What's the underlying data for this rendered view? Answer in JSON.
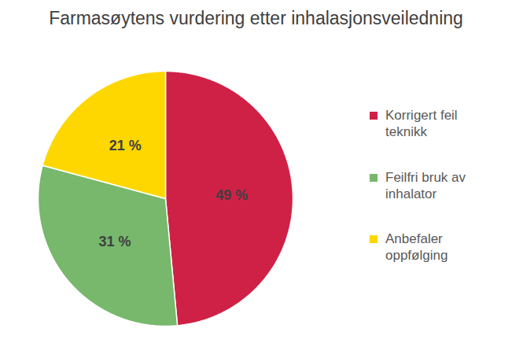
{
  "chart_data": {
    "type": "pie",
    "title": "Farmasøytens vurdering etter inhalasjonsveiledning",
    "categories": [
      "Korrigert feil teknikk",
      "Feilfri bruk av inhalator",
      "Anbefaler oppfølging"
    ],
    "values": [
      49,
      31,
      21
    ],
    "value_labels": [
      "49 %",
      "31 %",
      "21 %"
    ],
    "colors": [
      "#cf2146",
      "#77b86c",
      "#ffd700"
    ],
    "data_labels": true,
    "legend": "right"
  }
}
